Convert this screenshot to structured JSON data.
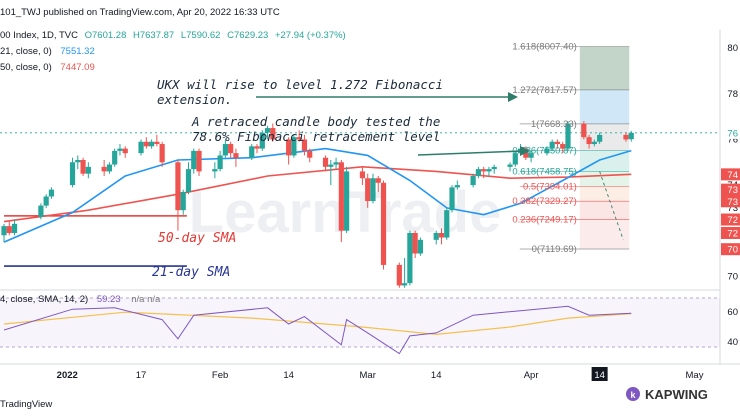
{
  "header": {
    "publisher": "101_TWJ published on TradingView.com, Apr 20, 2022 16:33 UTC",
    "symbol_line": "00 Index, 1D, TVC",
    "ohlc": {
      "O": "O7601.28",
      "H": "H7637.87",
      "L": "L7590.62",
      "C": "C7629.23",
      "change": "+27.94 (+0.37%)"
    },
    "ma21_label": "21, close, 0)",
    "ma21_value": "7551.32",
    "ma50_label": "50, close, 0)",
    "ma50_value": "7447.09",
    "rsi_label": "4, close, SMA, 14, 2)",
    "rsi_value": "59.23",
    "rsi_na": "n/a  n/a"
  },
  "annotations": {
    "ukx_line1": "UKX will rise to level 1.272 Fibonacci",
    "ukx_line2": "extension.",
    "retrace_line1": "A retraced candle body tested the",
    "retrace_line2": "78.6% Fibonacci retracement level",
    "sma50": "50-day SMA",
    "sma21": "21-day SMA"
  },
  "fib_labels": [
    {
      "level": 1.618,
      "text": "1.618(8007.40)",
      "color": "#7a7a7a"
    },
    {
      "level": 1.272,
      "text": "1.272(7817.57)",
      "color": "#7a7a7a"
    },
    {
      "level": 1,
      "text": "1(7668.33)",
      "color": "#7a7a7a"
    },
    {
      "level": 0.786,
      "text": "0.786(7550.87)",
      "color": "#26a69a"
    },
    {
      "level": 0.618,
      "text": "0.618(7458.75)",
      "color": "#26a69a"
    },
    {
      "level": 0.5,
      "text": "0.5(7394.01)",
      "color": "#ef5350"
    },
    {
      "level": 0.382,
      "text": "0.382(7329.27)",
      "color": "#ef5350"
    },
    {
      "level": 0.236,
      "text": "0.236(7249.17)",
      "color": "#ef5350"
    },
    {
      "level": 0,
      "text": "0(7119.69)",
      "color": "#7a7a7a"
    }
  ],
  "price_axis": {
    "ticks": [
      "80",
      "78",
      "76",
      "74",
      "73",
      "72",
      "70"
    ],
    "tick_values": [
      8000,
      7800,
      7600,
      7400,
      7300,
      7200,
      7000
    ],
    "markers": [
      {
        "text": "76",
        "value": 7629,
        "color": "#26a69a",
        "bg": "#ffffff"
      },
      {
        "text": "74",
        "value": 7447,
        "color": "#ffffff",
        "bg": "#ef5350"
      },
      {
        "text": "73",
        "value": 7380,
        "color": "#ffffff",
        "bg": "#ef5350"
      },
      {
        "text": "73",
        "value": 7329,
        "color": "#ffffff",
        "bg": "#ef5350"
      },
      {
        "text": "72",
        "value": 7249,
        "color": "#ffffff",
        "bg": "#ef5350"
      },
      {
        "text": "72",
        "value": 7190,
        "color": "#ffffff",
        "bg": "#ef5350"
      },
      {
        "text": "70",
        "value": 7119,
        "color": "#ffffff",
        "bg": "#ef5350"
      }
    ]
  },
  "rsi_axis": {
    "ticks": [
      "60",
      "40"
    ],
    "tick_values": [
      60,
      40
    ]
  },
  "time_axis": [
    {
      "text": "2022",
      "date": "2022-01-03",
      "bold": true
    },
    {
      "text": "17",
      "date": "2022-01-17",
      "bold": false
    },
    {
      "text": "Feb",
      "date": "2022-02-01",
      "bold": false
    },
    {
      "text": "14",
      "date": "2022-02-14",
      "bold": false
    },
    {
      "text": "Mar",
      "date": "2022-03-01",
      "bold": false
    },
    {
      "text": "14",
      "date": "2022-03-14",
      "bold": false
    },
    {
      "text": "Apr",
      "date": "2022-04-01",
      "bold": false
    },
    {
      "text": "14",
      "date": "2022-04-14",
      "bold": false,
      "highlight": true
    },
    {
      "text": "May",
      "date": "2022-05-02",
      "bold": false
    }
  ],
  "footer": {
    "tv_logo": "TradingView",
    "kapwing": "KAPWING",
    "watermark": "LearnTrade"
  },
  "colors": {
    "up": "#26a69a",
    "down": "#ef5350",
    "sma21": "#2196f3",
    "sma50": "#ef5350",
    "rsi": "#7e57c2",
    "rsi_ma": "#f5c050",
    "annotation_arrow": "#2e7d6b",
    "hline_red": "#e53935",
    "hline_blue": "#283593"
  },
  "chart_data": {
    "type": "candlestick",
    "title": "00 Index, 1D, TVC",
    "ylim": [
      6940,
      8080
    ],
    "date_range": [
      "2021-12-22",
      "2022-05-05"
    ],
    "candles": [
      {
        "d": "2021-12-22",
        "o": 7180,
        "h": 7230,
        "l": 7150,
        "c": 7220
      },
      {
        "d": "2021-12-23",
        "o": 7220,
        "h": 7240,
        "l": 7180,
        "c": 7190
      },
      {
        "d": "2021-12-24",
        "o": 7190,
        "h": 7250,
        "l": 7180,
        "c": 7230
      },
      {
        "d": "2021-12-29",
        "o": 7260,
        "h": 7320,
        "l": 7250,
        "c": 7310
      },
      {
        "d": "2021-12-30",
        "o": 7310,
        "h": 7360,
        "l": 7300,
        "c": 7350
      },
      {
        "d": "2021-12-31",
        "o": 7350,
        "h": 7390,
        "l": 7340,
        "c": 7380
      },
      {
        "d": "2022-01-04",
        "o": 7400,
        "h": 7520,
        "l": 7390,
        "c": 7500
      },
      {
        "d": "2022-01-05",
        "o": 7500,
        "h": 7530,
        "l": 7470,
        "c": 7510
      },
      {
        "d": "2022-01-06",
        "o": 7510,
        "h": 7520,
        "l": 7440,
        "c": 7450
      },
      {
        "d": "2022-01-07",
        "o": 7450,
        "h": 7500,
        "l": 7430,
        "c": 7480
      },
      {
        "d": "2022-01-10",
        "o": 7480,
        "h": 7510,
        "l": 7440,
        "c": 7460
      },
      {
        "d": "2022-01-11",
        "o": 7460,
        "h": 7500,
        "l": 7450,
        "c": 7490
      },
      {
        "d": "2022-01-12",
        "o": 7490,
        "h": 7560,
        "l": 7480,
        "c": 7550
      },
      {
        "d": "2022-01-13",
        "o": 7550,
        "h": 7580,
        "l": 7530,
        "c": 7560
      },
      {
        "d": "2022-01-14",
        "o": 7560,
        "h": 7570,
        "l": 7520,
        "c": 7540
      },
      {
        "d": "2022-01-17",
        "o": 7540,
        "h": 7600,
        "l": 7530,
        "c": 7590
      },
      {
        "d": "2022-01-18",
        "o": 7590,
        "h": 7610,
        "l": 7560,
        "c": 7570
      },
      {
        "d": "2022-01-19",
        "o": 7570,
        "h": 7600,
        "l": 7560,
        "c": 7590
      },
      {
        "d": "2022-01-20",
        "o": 7590,
        "h": 7620,
        "l": 7570,
        "c": 7580
      },
      {
        "d": "2022-01-21",
        "o": 7580,
        "h": 7590,
        "l": 7480,
        "c": 7500
      },
      {
        "d": "2022-01-24",
        "o": 7500,
        "h": 7510,
        "l": 7200,
        "c": 7290
      },
      {
        "d": "2022-01-25",
        "o": 7290,
        "h": 7380,
        "l": 7270,
        "c": 7370
      },
      {
        "d": "2022-01-26",
        "o": 7370,
        "h": 7500,
        "l": 7360,
        "c": 7470
      },
      {
        "d": "2022-01-27",
        "o": 7470,
        "h": 7560,
        "l": 7450,
        "c": 7550
      },
      {
        "d": "2022-01-28",
        "o": 7550,
        "h": 7560,
        "l": 7440,
        "c": 7460
      },
      {
        "d": "2022-01-31",
        "o": 7460,
        "h": 7500,
        "l": 7430,
        "c": 7470
      },
      {
        "d": "2022-02-01",
        "o": 7470,
        "h": 7550,
        "l": 7460,
        "c": 7530
      },
      {
        "d": "2022-02-02",
        "o": 7530,
        "h": 7600,
        "l": 7520,
        "c": 7580
      },
      {
        "d": "2022-02-03",
        "o": 7580,
        "h": 7590,
        "l": 7520,
        "c": 7540
      },
      {
        "d": "2022-02-04",
        "o": 7540,
        "h": 7560,
        "l": 7480,
        "c": 7520
      },
      {
        "d": "2022-02-07",
        "o": 7520,
        "h": 7580,
        "l": 7510,
        "c": 7570
      },
      {
        "d": "2022-02-08",
        "o": 7570,
        "h": 7580,
        "l": 7540,
        "c": 7560
      },
      {
        "d": "2022-02-09",
        "o": 7560,
        "h": 7640,
        "l": 7550,
        "c": 7630
      },
      {
        "d": "2022-02-10",
        "o": 7630,
        "h": 7660,
        "l": 7600,
        "c": 7650
      },
      {
        "d": "2022-02-11",
        "o": 7650,
        "h": 7670,
        "l": 7590,
        "c": 7600
      },
      {
        "d": "2022-02-14",
        "o": 7600,
        "h": 7610,
        "l": 7490,
        "c": 7530
      },
      {
        "d": "2022-02-15",
        "o": 7530,
        "h": 7620,
        "l": 7520,
        "c": 7610
      },
      {
        "d": "2022-02-16",
        "o": 7610,
        "h": 7640,
        "l": 7590,
        "c": 7600
      },
      {
        "d": "2022-02-17",
        "o": 7600,
        "h": 7620,
        "l": 7530,
        "c": 7550
      },
      {
        "d": "2022-02-18",
        "o": 7550,
        "h": 7560,
        "l": 7500,
        "c": 7520
      },
      {
        "d": "2022-02-21",
        "o": 7520,
        "h": 7530,
        "l": 7460,
        "c": 7480
      },
      {
        "d": "2022-02-22",
        "o": 7480,
        "h": 7510,
        "l": 7400,
        "c": 7490
      },
      {
        "d": "2022-02-23",
        "o": 7490,
        "h": 7520,
        "l": 7470,
        "c": 7500
      },
      {
        "d": "2022-02-24",
        "o": 7500,
        "h": 7510,
        "l": 7150,
        "c": 7200
      },
      {
        "d": "2022-02-25",
        "o": 7200,
        "h": 7480,
        "l": 7190,
        "c": 7460
      },
      {
        "d": "2022-02-28",
        "o": 7460,
        "h": 7480,
        "l": 7400,
        "c": 7430
      },
      {
        "d": "2022-03-01",
        "o": 7430,
        "h": 7450,
        "l": 7300,
        "c": 7330
      },
      {
        "d": "2022-03-02",
        "o": 7330,
        "h": 7450,
        "l": 7320,
        "c": 7430
      },
      {
        "d": "2022-03-03",
        "o": 7430,
        "h": 7440,
        "l": 7370,
        "c": 7410
      },
      {
        "d": "2022-03-04",
        "o": 7410,
        "h": 7420,
        "l": 7030,
        "c": 7050
      },
      {
        "d": "2022-03-07",
        "o": 7050,
        "h": 7060,
        "l": 6950,
        "c": 6960
      },
      {
        "d": "2022-03-08",
        "o": 6960,
        "h": 7080,
        "l": 6950,
        "c": 6970
      },
      {
        "d": "2022-03-09",
        "o": 6970,
        "h": 7200,
        "l": 6960,
        "c": 7190
      },
      {
        "d": "2022-03-10",
        "o": 7190,
        "h": 7200,
        "l": 7080,
        "c": 7100
      },
      {
        "d": "2022-03-11",
        "o": 7100,
        "h": 7170,
        "l": 7090,
        "c": 7160
      },
      {
        "d": "2022-03-14",
        "o": 7160,
        "h": 7200,
        "l": 7140,
        "c": 7190
      },
      {
        "d": "2022-03-15",
        "o": 7190,
        "h": 7210,
        "l": 7140,
        "c": 7170
      },
      {
        "d": "2022-03-16",
        "o": 7170,
        "h": 7300,
        "l": 7160,
        "c": 7290
      },
      {
        "d": "2022-03-17",
        "o": 7290,
        "h": 7400,
        "l": 7280,
        "c": 7390
      },
      {
        "d": "2022-03-18",
        "o": 7390,
        "h": 7420,
        "l": 7380,
        "c": 7400
      },
      {
        "d": "2022-03-21",
        "o": 7400,
        "h": 7450,
        "l": 7390,
        "c": 7440
      },
      {
        "d": "2022-03-22",
        "o": 7440,
        "h": 7480,
        "l": 7430,
        "c": 7470
      },
      {
        "d": "2022-03-23",
        "o": 7470,
        "h": 7480,
        "l": 7430,
        "c": 7460
      },
      {
        "d": "2022-03-24",
        "o": 7460,
        "h": 7480,
        "l": 7440,
        "c": 7470
      },
      {
        "d": "2022-03-25",
        "o": 7470,
        "h": 7490,
        "l": 7450,
        "c": 7480
      },
      {
        "d": "2022-03-28",
        "o": 7480,
        "h": 7500,
        "l": 7460,
        "c": 7490
      },
      {
        "d": "2022-03-29",
        "o": 7490,
        "h": 7550,
        "l": 7480,
        "c": 7540
      },
      {
        "d": "2022-03-30",
        "o": 7540,
        "h": 7580,
        "l": 7530,
        "c": 7560
      },
      {
        "d": "2022-03-31",
        "o": 7560,
        "h": 7570,
        "l": 7510,
        "c": 7520
      },
      {
        "d": "2022-04-01",
        "o": 7520,
        "h": 7550,
        "l": 7500,
        "c": 7540
      },
      {
        "d": "2022-04-04",
        "o": 7540,
        "h": 7570,
        "l": 7530,
        "c": 7560
      },
      {
        "d": "2022-04-05",
        "o": 7560,
        "h": 7600,
        "l": 7550,
        "c": 7590
      },
      {
        "d": "2022-04-06",
        "o": 7590,
        "h": 7600,
        "l": 7560,
        "c": 7580
      },
      {
        "d": "2022-04-07",
        "o": 7580,
        "h": 7590,
        "l": 7540,
        "c": 7560
      },
      {
        "d": "2022-04-08",
        "o": 7560,
        "h": 7680,
        "l": 7550,
        "c": 7670
      },
      {
        "d": "2022-04-11",
        "o": 7670,
        "h": 7680,
        "l": 7600,
        "c": 7610
      },
      {
        "d": "2022-04-12",
        "o": 7610,
        "h": 7620,
        "l": 7560,
        "c": 7580
      },
      {
        "d": "2022-04-13",
        "o": 7580,
        "h": 7600,
        "l": 7570,
        "c": 7590
      },
      {
        "d": "2022-04-14",
        "o": 7590,
        "h": 7630,
        "l": 7580,
        "c": 7620
      },
      {
        "d": "2022-04-19",
        "o": 7620,
        "h": 7630,
        "l": 7590,
        "c": 7600
      },
      {
        "d": "2022-04-20",
        "o": 7601.28,
        "h": 7637.87,
        "l": 7590.62,
        "c": 7629.23
      }
    ],
    "sma21": [
      {
        "d": "2021-12-22",
        "v": 7150
      },
      {
        "d": "2022-01-04",
        "v": 7280
      },
      {
        "d": "2022-01-14",
        "v": 7440
      },
      {
        "d": "2022-01-24",
        "v": 7510
      },
      {
        "d": "2022-02-07",
        "v": 7520
      },
      {
        "d": "2022-02-21",
        "v": 7560
      },
      {
        "d": "2022-03-01",
        "v": 7530
      },
      {
        "d": "2022-03-09",
        "v": 7420
      },
      {
        "d": "2022-03-16",
        "v": 7300
      },
      {
        "d": "2022-03-23",
        "v": 7270
      },
      {
        "d": "2022-03-30",
        "v": 7320
      },
      {
        "d": "2022-04-07",
        "v": 7420
      },
      {
        "d": "2022-04-14",
        "v": 7510
      },
      {
        "d": "2022-04-20",
        "v": 7551.32
      }
    ],
    "sma50": [
      {
        "d": "2021-12-22",
        "v": 7240
      },
      {
        "d": "2022-01-07",
        "v": 7290
      },
      {
        "d": "2022-01-24",
        "v": 7360
      },
      {
        "d": "2022-02-10",
        "v": 7440
      },
      {
        "d": "2022-02-28",
        "v": 7480
      },
      {
        "d": "2022-03-14",
        "v": 7460
      },
      {
        "d": "2022-03-28",
        "v": 7430
      },
      {
        "d": "2022-04-08",
        "v": 7435
      },
      {
        "d": "2022-04-20",
        "v": 7447.09
      }
    ],
    "rsi_ylim": [
      25,
      75
    ],
    "rsi": [
      {
        "d": "2021-12-22",
        "v": 48
      },
      {
        "d": "2022-01-04",
        "v": 62
      },
      {
        "d": "2022-01-12",
        "v": 63
      },
      {
        "d": "2022-01-21",
        "v": 55
      },
      {
        "d": "2022-01-24",
        "v": 42
      },
      {
        "d": "2022-01-27",
        "v": 58
      },
      {
        "d": "2022-02-10",
        "v": 63
      },
      {
        "d": "2022-02-14",
        "v": 52
      },
      {
        "d": "2022-02-17",
        "v": 57
      },
      {
        "d": "2022-02-24",
        "v": 38
      },
      {
        "d": "2022-02-25",
        "v": 55
      },
      {
        "d": "2022-03-01",
        "v": 46
      },
      {
        "d": "2022-03-07",
        "v": 32
      },
      {
        "d": "2022-03-09",
        "v": 44
      },
      {
        "d": "2022-03-14",
        "v": 46
      },
      {
        "d": "2022-03-21",
        "v": 58
      },
      {
        "d": "2022-03-30",
        "v": 61
      },
      {
        "d": "2022-04-08",
        "v": 64
      },
      {
        "d": "2022-04-12",
        "v": 58
      },
      {
        "d": "2022-04-20",
        "v": 59.23
      }
    ],
    "rsi_ma": [
      {
        "d": "2021-12-22",
        "v": 52
      },
      {
        "d": "2022-01-14",
        "v": 60
      },
      {
        "d": "2022-02-07",
        "v": 56
      },
      {
        "d": "2022-02-28",
        "v": 50
      },
      {
        "d": "2022-03-14",
        "v": 45
      },
      {
        "d": "2022-03-28",
        "v": 50
      },
      {
        "d": "2022-04-08",
        "v": 56
      },
      {
        "d": "2022-04-20",
        "v": 59
      }
    ],
    "horizontal_lines": [
      {
        "name": "50-day SMA",
        "value": 7265,
        "from": "2021-12-22",
        "to": "2022-01-20",
        "color": "#e53935"
      },
      {
        "name": "21-day SMA",
        "value": 7045,
        "from": "2021-12-22",
        "to": "2022-01-20",
        "color": "#283593"
      }
    ]
  }
}
